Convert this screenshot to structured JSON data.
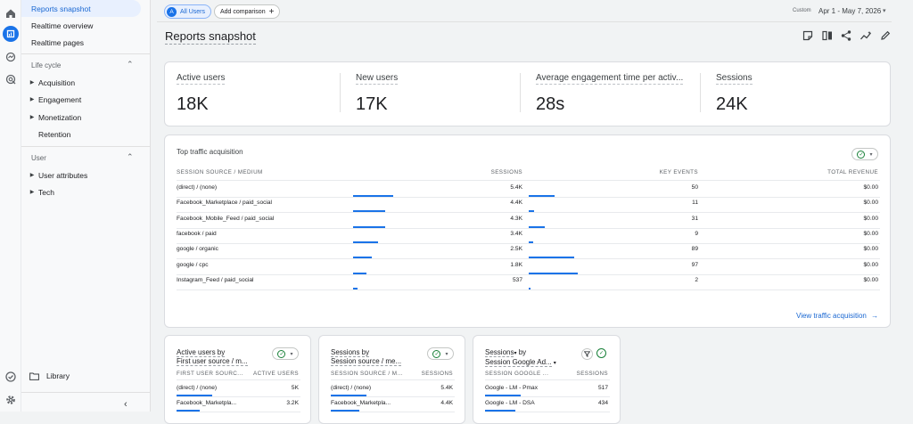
{
  "nav": {
    "items_top": [
      "Reports snapshot",
      "Realtime overview",
      "Realtime pages"
    ],
    "lifecycle_label": "Life cycle",
    "lifecycle_items": [
      "Acquisition",
      "Engagement",
      "Monetization",
      "Retention"
    ],
    "user_label": "User",
    "user_items": [
      "User attributes",
      "Tech"
    ],
    "library_label": "Library"
  },
  "header": {
    "segment_avatar": "A",
    "segment_label": "All Users",
    "add_comparison": "Add comparison",
    "date_label": "Custom",
    "date_range": "Apr 1 - May 7, 2026",
    "page_title": "Reports snapshot"
  },
  "kpis": [
    {
      "label": "Active users",
      "value": "18K"
    },
    {
      "label": "New users",
      "value": "17K"
    },
    {
      "label": "Average engagement time per activ...",
      "value": "28s"
    },
    {
      "label": "Sessions",
      "value": "24K"
    }
  ],
  "traffic": {
    "title": "Top traffic acquisition",
    "headers": [
      "SESSION SOURCE / MEDIUM",
      "SESSIONS",
      "KEY EVENTS",
      "TOTAL REVENUE"
    ],
    "rows": [
      {
        "src": "(direct) / (none)",
        "sessions": "5.4K",
        "key": "50",
        "rev": "$0.00",
        "s_frac": 1.0,
        "k_frac": 0.52
      },
      {
        "src": "Facebook_Marketplace / paid_social",
        "sessions": "4.4K",
        "key": "11",
        "rev": "$0.00",
        "s_frac": 0.81,
        "k_frac": 0.11
      },
      {
        "src": "Facebook_Mobile_Feed / paid_social",
        "sessions": "4.3K",
        "key": "31",
        "rev": "$0.00",
        "s_frac": 0.8,
        "k_frac": 0.32
      },
      {
        "src": "facebook / paid",
        "sessions": "3.4K",
        "key": "9",
        "rev": "$0.00",
        "s_frac": 0.63,
        "k_frac": 0.09
      },
      {
        "src": "google / organic",
        "sessions": "2.5K",
        "key": "89",
        "rev": "$0.00",
        "s_frac": 0.46,
        "k_frac": 0.92
      },
      {
        "src": "google / cpc",
        "sessions": "1.8K",
        "key": "97",
        "rev": "$0.00",
        "s_frac": 0.33,
        "k_frac": 1.0
      },
      {
        "src": "Instagram_Feed / paid_social",
        "sessions": "537",
        "key": "2",
        "rev": "$0.00",
        "s_frac": 0.1,
        "k_frac": 0.02
      }
    ],
    "link": "View traffic acquisition"
  },
  "mini1": {
    "title_line1": "Active users by",
    "title_line2": "First user source / m...",
    "headers": [
      "FIRST USER SOURC...",
      "ACTIVE USERS"
    ],
    "rows": [
      {
        "a": "(direct) / (none)",
        "b": "5K",
        "frac": 1.0
      },
      {
        "a": "Facebook_Marketpla...",
        "b": "3.2K",
        "frac": 0.64
      }
    ]
  },
  "mini2": {
    "title_line1": "Sessions by",
    "title_line2": "Session source / me...",
    "headers": [
      "SESSION SOURCE / M...",
      "SESSIONS"
    ],
    "rows": [
      {
        "a": "(direct) / (none)",
        "b": "5.4K",
        "frac": 1.0
      },
      {
        "a": "Facebook_Marketpla...",
        "b": "4.4K",
        "frac": 0.81
      }
    ]
  },
  "mini3": {
    "title_line1": "Sessions",
    "title_line1_b": "by",
    "title_line2": "Session Google Ad...",
    "headers": [
      "SESSION GOOGLE ...",
      "SESSIONS"
    ],
    "rows": [
      {
        "a": "Google - LM - Pmax",
        "b": "517",
        "frac": 1.0
      },
      {
        "a": "Google - LM - DSA",
        "b": "434",
        "frac": 0.84
      }
    ]
  },
  "colors": {
    "accent": "#1a73e8",
    "positive": "#188038"
  }
}
